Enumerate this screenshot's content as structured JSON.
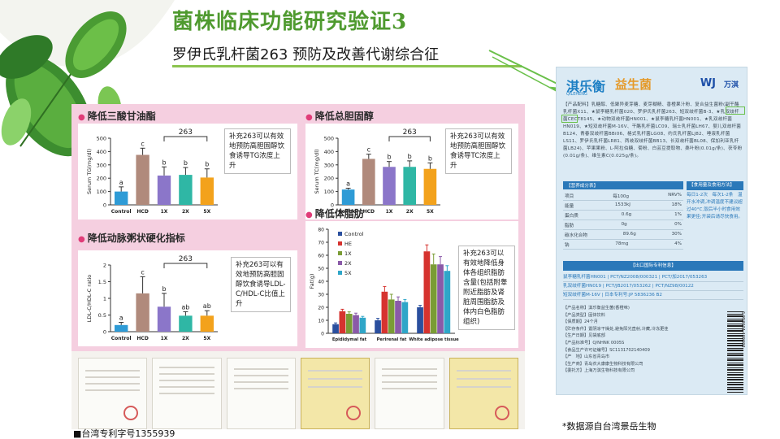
{
  "slide": {
    "title": "菌株临床功能研究验证3",
    "subtitle": "罗伊氏乳杆菌263 预防及改善代谢综合征",
    "patent_label": "■台湾专利字号1355939",
    "source_note": "*数据源自台湾景岳生物"
  },
  "colors": {
    "title_green": "#4f9a2f",
    "panel_pink": "#f5cfe0",
    "bullet_pink": "#e03c78",
    "control": "#2e9bd6",
    "hcd": "#b08a7c",
    "dose_1x": "#8b76c9",
    "dose_2x": "#2fb7a5",
    "dose_5x": "#f3a21c",
    "product_blue": "#1d7fc4"
  },
  "chart_data": [
    {
      "type": "bar",
      "title": "降低三酸甘油酯",
      "ylabel": "Serum TG(mg/dl)",
      "ylim": [
        0,
        500
      ],
      "yticks": [
        0,
        100,
        200,
        300,
        400,
        500
      ],
      "categories": [
        "Control",
        "HCD",
        "1X",
        "2X",
        "5X"
      ],
      "values": [
        100,
        375,
        220,
        225,
        205
      ],
      "errors": [
        35,
        50,
        65,
        55,
        65
      ],
      "sig_letters": [
        "a",
        "c",
        "b",
        "b",
        "b"
      ],
      "bracket_label": "263",
      "note": "补充263可以有效地预防高胆固醇饮食诱导TG浓度上升"
    },
    {
      "type": "bar",
      "title": "降低总胆固醇",
      "ylabel": "Serum TC(mg/dl)",
      "ylim": [
        0,
        500
      ],
      "yticks": [
        0,
        100,
        200,
        300,
        400,
        500
      ],
      "categories": [
        "Control",
        "HCD",
        "1X",
        "2X",
        "5X"
      ],
      "values": [
        115,
        345,
        285,
        285,
        270
      ],
      "errors": [
        10,
        35,
        40,
        45,
        45
      ],
      "sig_letters": [
        "a",
        "c",
        "b",
        "b",
        "b"
      ],
      "bracket_label": "263",
      "note": "补充263可以有效地预防高胆固醇饮食诱导TC浓度上升"
    },
    {
      "type": "bar",
      "title": "降低动脉粥状硬化指标",
      "ylabel": "LDL-C/HDL-C ratio",
      "ylim": [
        0,
        2.0
      ],
      "yticks": [
        0,
        0.5,
        1.0,
        1.5,
        2.0
      ],
      "categories": [
        "Control",
        "HCD",
        "1X",
        "2X",
        "5X"
      ],
      "values": [
        0.2,
        1.15,
        0.75,
        0.48,
        0.48
      ],
      "errors": [
        0.08,
        0.5,
        0.4,
        0.12,
        0.15
      ],
      "sig_letters": [
        "a",
        "c",
        "b",
        "ab",
        "ab"
      ],
      "bracket_label": "263",
      "note": "补充263可以有效地预防高胆固醇饮食诱导LDL-C/HDL-C比值上升"
    },
    {
      "type": "bar",
      "title": "降低体脂肪",
      "ylabel": "Fat(g)",
      "ylim": [
        0,
        80
      ],
      "yticks": [
        0,
        10,
        20,
        30,
        40,
        50,
        60,
        70,
        80
      ],
      "categories": [
        "Epididymal fat",
        "Perirenal fat",
        "White adipose tissue"
      ],
      "series": [
        {
          "name": "Control",
          "values": [
            7,
            10,
            20
          ],
          "errors": [
            1,
            1.5,
            1.5
          ]
        },
        {
          "name": "HE",
          "values": [
            17,
            32,
            63
          ],
          "errors": [
            1.5,
            4,
            5
          ]
        },
        {
          "name": "1X",
          "values": [
            15,
            26,
            53
          ],
          "errors": [
            1.5,
            4,
            8
          ]
        },
        {
          "name": "2X",
          "values": [
            14,
            25,
            53
          ],
          "errors": [
            1.5,
            3,
            6
          ]
        },
        {
          "name": "5X",
          "values": [
            12,
            24,
            48
          ],
          "errors": [
            1,
            2,
            4
          ]
        }
      ],
      "series_colors": [
        "#2a4f9e",
        "#d6332f",
        "#7a9c35",
        "#8a5aa8",
        "#2fa6c8"
      ],
      "note": "补充263可以有效地降低身体各组织脂肪含量(包括附睾附近脂肪及肾脏周围脂肪及体内白色脂肪组织)"
    }
  ],
  "product": {
    "brand_cn": "淇乐衡",
    "brand_sub": "益生菌",
    "brand_en": "QILEHENG",
    "maker_logo": "WJ",
    "maker_name": "万淇",
    "ingredients": "【产品配料】乳糖醇、低聚异麦芽糖、麦芽糊精、香橙果汁粉、复合益生菌粉(副干酪乳杆菌X11、★鼠李糖乳杆菌020、罗伊氏乳杆菌263、短双歧杆菌B-3、★乳双歧杆菌CECT8145、★动物双歧杆菌HN001、★鼠李糖乳杆菌HN001、★乳双歧杆菌HN019、★短双歧杆菌M-16V、干酪乳杆菌LC09、瑞士乳杆菌LH67、婴儿双歧杆菌B124、青春双歧杆菌BBi06、格式乳杆菌LG08、约氏乳杆菌LJ82、唾液乳杆菌LS11、罗伊氏乳杆菌LR81、两歧双歧杆菌BB13、长双歧杆菌BL08、保加利亚乳杆菌LB24)、苹果果粉、L-阿拉伯糖、菊粉、白芸豆提取物、桑叶粉(0.01g/条)、茯苓粉(0.01g/条)、维生素C(0.025g/条)。",
    "nutrition_title": "【营养成分表】",
    "nutrition_header": [
      "项目",
      "每100g",
      "NRV%"
    ],
    "nutrition_rows": [
      [
        "能量",
        "1533kJ",
        "18%"
      ],
      [
        "蛋白质",
        "0.6g",
        "1%"
      ],
      [
        "脂肪",
        "0g",
        "0%"
      ],
      [
        "碳水化合物",
        "89.6g",
        "30%"
      ],
      [
        "钠",
        "78mg",
        "4%"
      ]
    ],
    "usage_title": "【食用量及食用方法】",
    "usage_text": "每日1-2次　每次1-2条　温开水冲调,冲调温度不建议超过40°C,饭后半小时食用效果更佳;开袋后请尽快食用。",
    "export_bar": "【出口国际专利信息】",
    "export_rows": [
      "鼠李糖乳杆菌HN001 | PCT/NZ2008/000321 | PCT/加2017/053263",
      "乳双歧杆菌HN019 | PCT/JB2017/053262 | PCT/NZ98/00122",
      "短双歧杆菌M-16V | 日本专利号:JP 5836236 B2"
    ],
    "info_lines": [
      "【产品名称】淇乐衡益生菌(香橙味)",
      "【产品类型】固体饮料",
      "【保质期】24个月",
      "【贮存条件】置阴凉干燥处,避免阳光直射,冷藏,冷冻更佳",
      "【生产日期】见袋底部",
      "【产品标准号】Q/NHNK 0005S",
      "【食品生产许可证编号】SC1131702140409",
      "【产　地】山东省青岛市",
      "【生产商】青岛农大康康生物科技有限公司",
      "【委托方】上海万淇生物科技有限公司"
    ],
    "barcode": "6 953634 400003"
  }
}
